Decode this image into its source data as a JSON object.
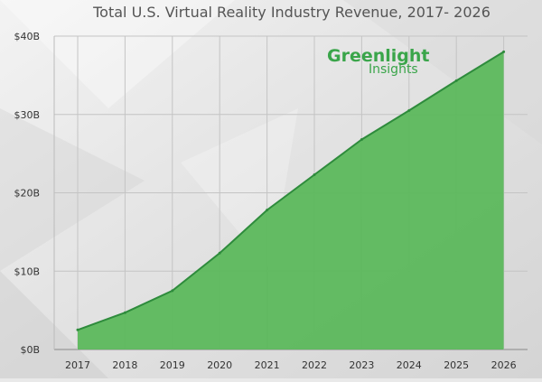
{
  "chart_data": {
    "type": "area",
    "title": "Total U.S. Virtual Reality Industry Revenue, 2017- 2026",
    "x": [
      "2017",
      "2018",
      "2019",
      "2020",
      "2021",
      "2022",
      "2023",
      "2024",
      "2025",
      "2026"
    ],
    "y_tick_labels": [
      "$0B",
      "$10B",
      "$20B",
      "$30B",
      "$40B"
    ],
    "y_ticks": [
      0,
      10,
      20,
      30,
      40
    ],
    "ylim": [
      0,
      40
    ],
    "xlabel": "",
    "ylabel": "",
    "series": [
      {
        "values": [
          2.5,
          4.7,
          7.5,
          12.3,
          17.8,
          22.3,
          26.8,
          30.5,
          34.3,
          38.0
        ]
      }
    ],
    "grid": true,
    "colors": {
      "area_fill": "#5cb85c",
      "area_line": "#2e8b3c",
      "grid": "#c4c4c4"
    }
  },
  "logo": {
    "line1": "Greenlight",
    "line2": "Insights"
  }
}
